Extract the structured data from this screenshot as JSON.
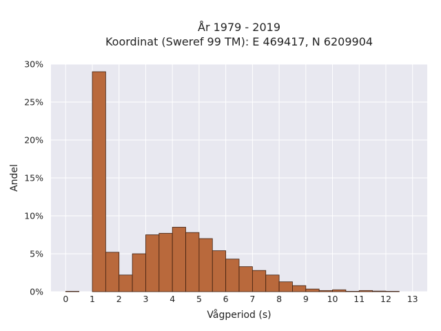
{
  "chart_data": {
    "type": "bar",
    "title_line1": "År 1979 - 2019",
    "title_line2": "Koordinat (Sweref 99 TM): E 469417, N 6209904",
    "xlabel": "Vågperiod (s)",
    "ylabel": "Andel",
    "bin_width": 0.5,
    "bins": [
      0,
      0.5,
      1,
      1.5,
      2,
      2.5,
      3,
      3.5,
      4,
      4.5,
      5,
      5.5,
      6,
      6.5,
      7,
      7.5,
      8,
      8.5,
      9,
      9.5,
      10,
      10.5,
      11,
      11.5,
      12
    ],
    "values": [
      0.05,
      0.0,
      29.0,
      5.2,
      2.2,
      5.0,
      7.5,
      7.7,
      8.5,
      7.8,
      7.0,
      5.4,
      4.3,
      3.3,
      2.8,
      2.2,
      1.3,
      0.8,
      0.35,
      0.15,
      0.25,
      0.05,
      0.15,
      0.08,
      0.05
    ],
    "xticks": [
      "0",
      "1",
      "2",
      "3",
      "4",
      "5",
      "6",
      "7",
      "8",
      "9",
      "10",
      "11",
      "12",
      "13"
    ],
    "xlim": [
      -0.55,
      13.55
    ],
    "yticks": [
      "0%",
      "5%",
      "10%",
      "15%",
      "20%",
      "25%",
      "30%"
    ],
    "ylim": [
      0,
      30
    ],
    "bar_color": "#b9693c",
    "bar_edge_color": "#3d1f10",
    "plot_bg": "#e8e8f0",
    "grid": true
  }
}
